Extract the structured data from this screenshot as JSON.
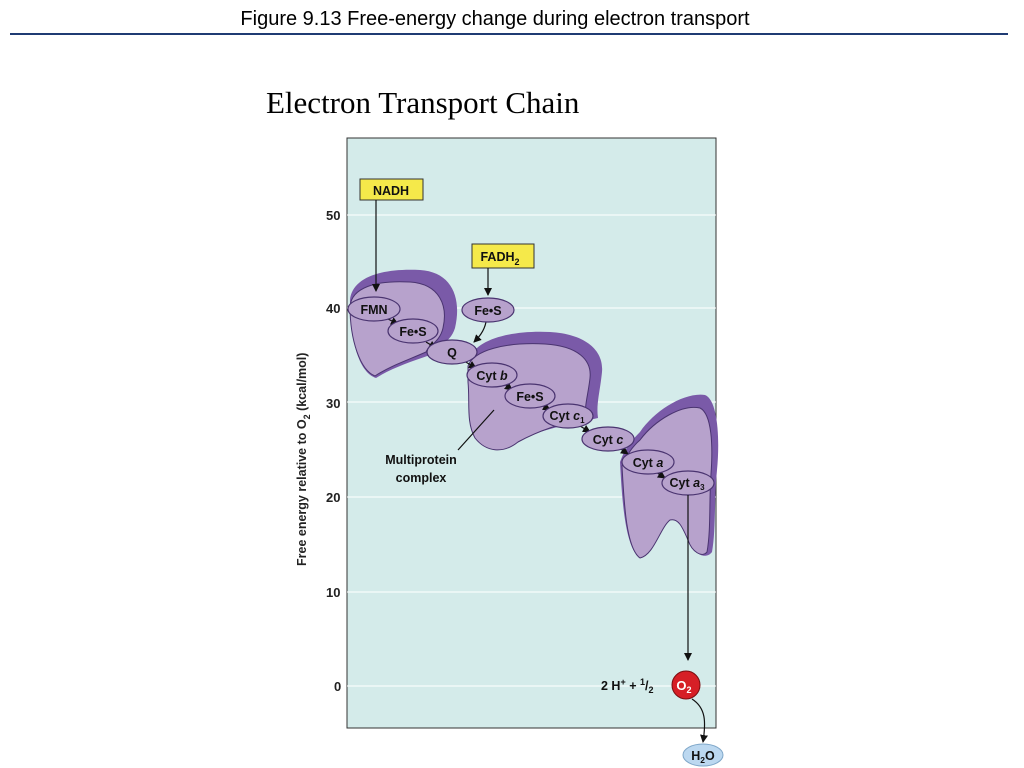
{
  "header": {
    "title": "Figure 9.13  Free-energy change during electron transport"
  },
  "slide": {
    "title": "Electron Transport Chain"
  },
  "axis": {
    "ylabel_main": "Free energy relative to O",
    "ylabel_sub": "2",
    "ylabel_end": " (kcal/mol)",
    "ticks": [
      "50",
      "40",
      "30",
      "20",
      "10",
      "0"
    ]
  },
  "donors": {
    "nadh": "NADH",
    "fadh_main": "FADH",
    "fadh_sub": "2"
  },
  "carriers": {
    "fmn": "FMN",
    "fes1": "Fe•S",
    "fes_top": "Fe•S",
    "q": "Q",
    "cytb_main": "Cyt ",
    "cytb_italic": "b",
    "fes2": "Fe•S",
    "cytc1_main": "Cyt ",
    "cytc1_italic": "c",
    "cytc1_sub": "1",
    "cytc_main": "Cyt ",
    "cytc_italic": "c",
    "cyta_main": "Cyt ",
    "cyta_italic": "a",
    "cyta3_main": "Cyt ",
    "cyta3_italic": "a",
    "cyta3_sub": "3"
  },
  "labels": {
    "multiprotein_line1": "Multiprotein",
    "multiprotein_line2": "complex",
    "proton_part": "2 H",
    "proton_sup": "+",
    "plus_half": " + ",
    "half_num": "1",
    "half_den": "2",
    "oxygen_main": "O",
    "oxygen_sub": "2",
    "water_h": "H",
    "water_sub": "2",
    "water_o": "O"
  },
  "colors": {
    "panel": "#d4ebea",
    "complex_light": "#b7a2cc",
    "complex_dark": "#7a5aa8",
    "donor_box": "#f5e94a",
    "oxygen": "#d61f26",
    "water": "#bcd8f0"
  }
}
